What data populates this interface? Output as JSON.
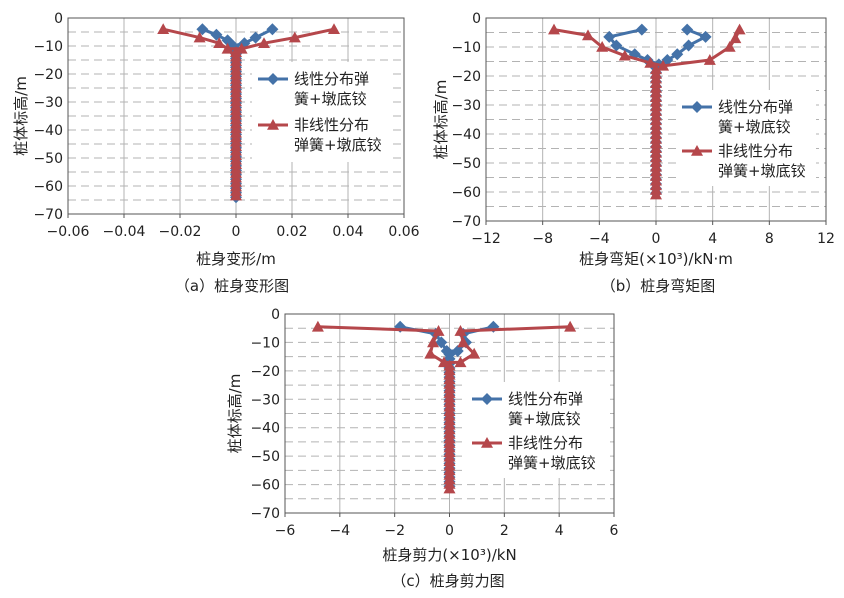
{
  "chart_data": [
    {
      "id": "a",
      "type": "line",
      "xlabel": "桩身变形/m",
      "ylabel": "桩体标高/m",
      "caption": "（a）桩身变形图",
      "xlim": [
        -0.06,
        0.06
      ],
      "ylim": [
        -70,
        0
      ],
      "xticks": [
        "−0.06",
        "−0.04",
        "−0.02",
        "0",
        "0.02",
        "0.04",
        "0.06"
      ],
      "yticks": [
        "0",
        "−10",
        "−20",
        "−30",
        "−40",
        "−50",
        "−60",
        "−70"
      ],
      "grid": true,
      "legend_position": "right",
      "series": [
        {
          "name": "线性分布弹簧+墩底铰",
          "name_lines": [
            "线性分布弹",
            "簧+墩底铰"
          ],
          "color": "#4472a8",
          "marker": "diamond",
          "points": [
            [
              -0.012,
              -4
            ],
            [
              -0.007,
              -6
            ],
            [
              -0.003,
              -8
            ],
            [
              -0.001,
              -10
            ],
            [
              0.003,
              -9
            ],
            [
              0.007,
              -7
            ],
            [
              0.013,
              -4
            ]
          ],
          "spine": [
            [
              -0.001,
              -10
            ],
            [
              0.0,
              -12
            ],
            [
              0.0,
              -15
            ],
            [
              0.0,
              -20
            ],
            [
              0.0,
              -30
            ],
            [
              0.0,
              -40
            ],
            [
              0.0,
              -50
            ],
            [
              0.0,
              -60
            ],
            [
              0.0,
              -65
            ]
          ]
        },
        {
          "name": "非线性分布弹簧+墩底铰",
          "name_lines": [
            "非线性分布",
            "弹簧+墩底铰"
          ],
          "color": "#b5474b",
          "marker": "triangle",
          "points": [
            [
              -0.026,
              -4
            ],
            [
              -0.013,
              -7
            ],
            [
              -0.006,
              -9
            ],
            [
              -0.003,
              -11
            ],
            [
              0.002,
              -11
            ],
            [
              0.01,
              -9
            ],
            [
              0.021,
              -7
            ],
            [
              0.035,
              -4
            ]
          ],
          "spine": [
            [
              -0.003,
              -11
            ],
            [
              -0.001,
              -13
            ],
            [
              0.0,
              -16
            ],
            [
              0.0,
              -20
            ],
            [
              0.0,
              -30
            ],
            [
              0.0,
              -40
            ],
            [
              0.0,
              -50
            ],
            [
              0.0,
              -60
            ],
            [
              0.0,
              -65
            ]
          ]
        }
      ]
    },
    {
      "id": "b",
      "type": "line",
      "xlabel": "桩身弯矩(×10³)/kN·m",
      "ylabel": "桩体标高/m",
      "caption": "（b）桩身弯矩图",
      "xlim": [
        -12,
        12
      ],
      "ylim": [
        -70,
        0
      ],
      "xticks": [
        "−12",
        "−8",
        "−4",
        "0",
        "4",
        "8",
        "12"
      ],
      "yticks": [
        "0",
        "−10",
        "−20",
        "−30",
        "−40",
        "−50",
        "−60",
        "−70"
      ],
      "grid": true,
      "legend_position": "right",
      "series": [
        {
          "name": "线性分布弹簧+墩底铰",
          "name_lines": [
            "线性分布弹",
            "簧+墩底铰"
          ],
          "color": "#4472a8",
          "marker": "diamond",
          "points": [
            [
              -1.0,
              -4
            ],
            [
              -3.3,
              -6.5
            ],
            [
              -2.8,
              -9.5
            ],
            [
              -1.5,
              -12.5
            ],
            [
              -0.6,
              -14.5
            ],
            [
              0.2,
              -16
            ],
            [
              0.8,
              -14.5
            ],
            [
              1.5,
              -12.5
            ],
            [
              2.3,
              -9.5
            ],
            [
              3.5,
              -6.5
            ],
            [
              2.2,
              -4
            ]
          ],
          "spine": [
            [
              0.2,
              -16
            ],
            [
              0.0,
              -18
            ],
            [
              0.0,
              -20
            ],
            [
              0.0,
              -30
            ],
            [
              0.0,
              -40
            ],
            [
              0.0,
              -50
            ],
            [
              0.0,
              -60
            ],
            [
              0.0,
              -62
            ]
          ]
        },
        {
          "name": "非线性分布弹簧+墩底铰",
          "name_lines": [
            "非线性分布",
            "弹簧+墩底铰"
          ],
          "color": "#b5474b",
          "marker": "triangle",
          "points": [
            [
              -7.2,
              -4
            ],
            [
              -4.8,
              -6
            ],
            [
              -3.8,
              -10
            ],
            [
              -2.2,
              -13
            ],
            [
              -0.4,
              -15.5
            ],
            [
              0.5,
              -16.5
            ],
            [
              3.8,
              -14.5
            ],
            [
              5.2,
              -10
            ],
            [
              5.6,
              -7
            ],
            [
              5.9,
              -4
            ]
          ],
          "spine": [
            [
              0.5,
              -16.5
            ],
            [
              0.1,
              -18.5
            ],
            [
              0.0,
              -21
            ],
            [
              0.0,
              -30
            ],
            [
              0.0,
              -40
            ],
            [
              0.0,
              -50
            ],
            [
              0.0,
              -60
            ],
            [
              0.0,
              -62
            ]
          ]
        }
      ]
    },
    {
      "id": "c",
      "type": "line",
      "xlabel": "桩身剪力(×10³)/kN",
      "ylabel": "桩体标高/m",
      "caption": "（c）桩身剪力图",
      "xlim": [
        -6,
        6
      ],
      "ylim": [
        -70,
        0
      ],
      "xticks": [
        "−6",
        "−4",
        "−2",
        "0",
        "2",
        "4",
        "6"
      ],
      "yticks": [
        "0",
        "−10",
        "−20",
        "−30",
        "−40",
        "−50",
        "−60",
        "−70"
      ],
      "grid": true,
      "legend_position": "right",
      "series": [
        {
          "name": "线性分布弹簧+墩底铰",
          "name_lines": [
            "线性分布弹",
            "簧+墩底铰"
          ],
          "color": "#4472a8",
          "marker": "diamond",
          "points": [
            [
              -1.8,
              -4.5
            ],
            [
              -0.5,
              -7
            ],
            [
              -0.3,
              -10
            ],
            [
              -0.1,
              -13
            ],
            [
              0.3,
              -13
            ],
            [
              0.6,
              -10
            ],
            [
              0.5,
              -7
            ],
            [
              1.6,
              -4.5
            ]
          ],
          "spine": [
            [
              -0.1,
              -13
            ],
            [
              0.0,
              -17
            ],
            [
              0.0,
              -20
            ],
            [
              0.0,
              -30
            ],
            [
              0.0,
              -40
            ],
            [
              0.0,
              -50
            ],
            [
              0.0,
              -60
            ],
            [
              0.0,
              -62
            ]
          ]
        },
        {
          "name": "非线性分布弹簧+墩底铰",
          "name_lines": [
            "非线性分布",
            "弹簧+墩底铰"
          ],
          "color": "#b5474b",
          "marker": "triangle",
          "points": [
            [
              -4.8,
              -4.5
            ],
            [
              -0.4,
              -6
            ],
            [
              -0.6,
              -10
            ],
            [
              -0.7,
              -14
            ],
            [
              -0.2,
              -17
            ],
            [
              0.4,
              -17
            ],
            [
              0.9,
              -14
            ],
            [
              0.5,
              -10
            ],
            [
              0.4,
              -6
            ],
            [
              4.4,
              -4.5
            ]
          ],
          "spine": [
            [
              -0.2,
              -17
            ],
            [
              0.0,
              -20
            ],
            [
              0.0,
              -30
            ],
            [
              0.0,
              -40
            ],
            [
              0.0,
              -50
            ],
            [
              0.0,
              -60
            ],
            [
              0.0,
              -62
            ]
          ]
        }
      ]
    }
  ]
}
